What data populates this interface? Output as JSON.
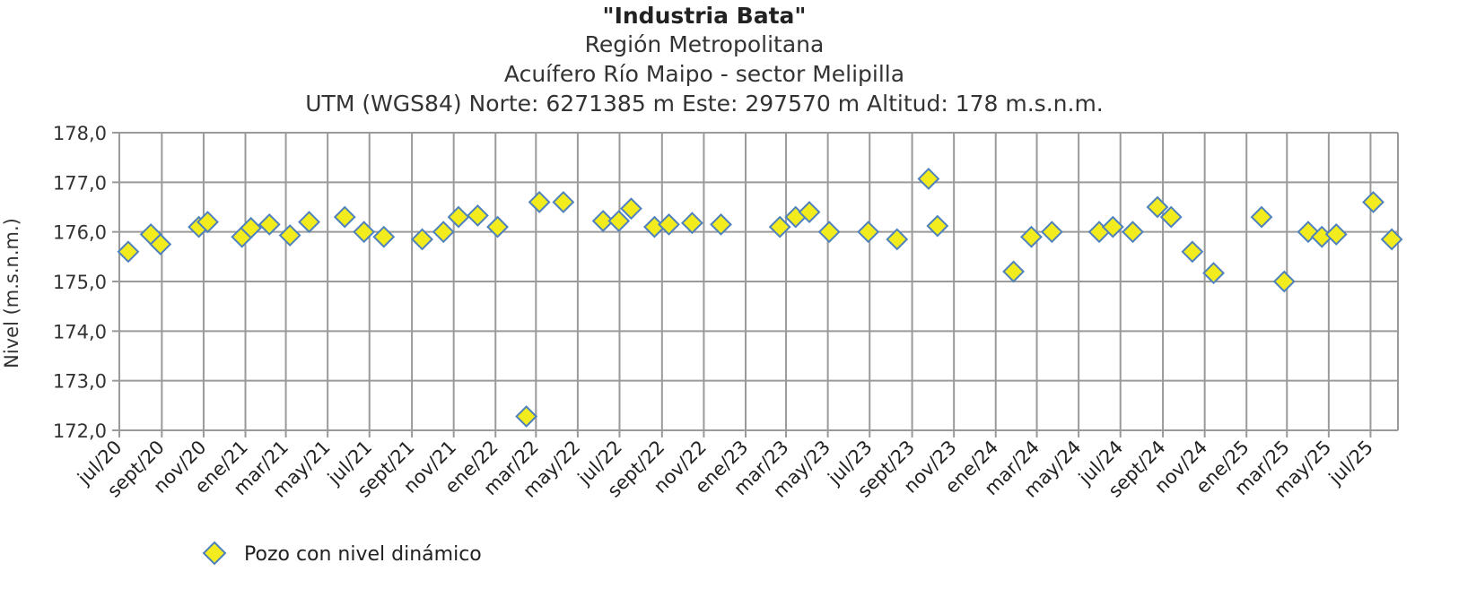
{
  "chart_data": {
    "type": "scatter",
    "title": "\"Industria Bata\"",
    "subtitles": [
      "Región Metropolitana",
      "Acuífero Río Maipo - sector Melipilla",
      "UTM (WGS84) Norte: 6271385 m Este: 297570 m   Altitud: 178 m.s.n.m."
    ],
    "xlabel": "",
    "ylabel": "Nivel (m.s.n.m.)",
    "ylim": [
      172.0,
      178.0
    ],
    "yticks": [
      "172,0",
      "173,0",
      "174,0",
      "175,0",
      "176,0",
      "177,0",
      "178,0"
    ],
    "xlim": [
      "2020-07-01",
      "2025-08-10"
    ],
    "xticks": [
      {
        "date": "2020-07-01",
        "label": "jul/20"
      },
      {
        "date": "2020-09-01",
        "label": "sept/20"
      },
      {
        "date": "2020-11-01",
        "label": "nov/20"
      },
      {
        "date": "2021-01-01",
        "label": "ene/21"
      },
      {
        "date": "2021-03-01",
        "label": "mar/21"
      },
      {
        "date": "2021-05-01",
        "label": "may/21"
      },
      {
        "date": "2021-07-01",
        "label": "jul/21"
      },
      {
        "date": "2021-09-01",
        "label": "sept/21"
      },
      {
        "date": "2021-11-01",
        "label": "nov/21"
      },
      {
        "date": "2022-01-01",
        "label": "ene/22"
      },
      {
        "date": "2022-03-01",
        "label": "mar/22"
      },
      {
        "date": "2022-05-01",
        "label": "may/22"
      },
      {
        "date": "2022-07-01",
        "label": "jul/22"
      },
      {
        "date": "2022-09-01",
        "label": "sept/22"
      },
      {
        "date": "2022-11-01",
        "label": "nov/22"
      },
      {
        "date": "2023-01-01",
        "label": "ene/23"
      },
      {
        "date": "2023-03-01",
        "label": "mar/23"
      },
      {
        "date": "2023-05-01",
        "label": "may/23"
      },
      {
        "date": "2023-07-01",
        "label": "jul/23"
      },
      {
        "date": "2023-09-01",
        "label": "sept/23"
      },
      {
        "date": "2023-11-01",
        "label": "nov/23"
      },
      {
        "date": "2024-01-01",
        "label": "ene/24"
      },
      {
        "date": "2024-03-01",
        "label": "mar/24"
      },
      {
        "date": "2024-05-01",
        "label": "may/24"
      },
      {
        "date": "2024-07-01",
        "label": "jul/24"
      },
      {
        "date": "2024-09-01",
        "label": "sept/24"
      },
      {
        "date": "2024-11-01",
        "label": "nov/24"
      },
      {
        "date": "2025-01-01",
        "label": "ene/25"
      },
      {
        "date": "2025-03-01",
        "label": "mar/25"
      },
      {
        "date": "2025-05-01",
        "label": "may/25"
      },
      {
        "date": "2025-07-01",
        "label": "jul/25"
      }
    ],
    "grid": true,
    "legend_position": "bottom-left",
    "series": [
      {
        "name": "Pozo con nivel dinámico",
        "color": "#f2ec1f",
        "edge_color": "#4f81bd",
        "marker": "diamond",
        "points": [
          {
            "x": "2020-07-14",
            "y": 175.6
          },
          {
            "x": "2020-08-16",
            "y": 175.95
          },
          {
            "x": "2020-08-30",
            "y": 175.75
          },
          {
            "x": "2020-10-25",
            "y": 176.1
          },
          {
            "x": "2020-11-07",
            "y": 176.2
          },
          {
            "x": "2020-12-27",
            "y": 175.9
          },
          {
            "x": "2021-01-09",
            "y": 176.08
          },
          {
            "x": "2021-02-05",
            "y": 176.15
          },
          {
            "x": "2021-03-07",
            "y": 175.93
          },
          {
            "x": "2021-04-04",
            "y": 176.2
          },
          {
            "x": "2021-05-26",
            "y": 176.3
          },
          {
            "x": "2021-06-23",
            "y": 176.0
          },
          {
            "x": "2021-07-22",
            "y": 175.9
          },
          {
            "x": "2021-09-16",
            "y": 175.85
          },
          {
            "x": "2021-10-17",
            "y": 176.0
          },
          {
            "x": "2021-11-08",
            "y": 176.3
          },
          {
            "x": "2021-12-06",
            "y": 176.33
          },
          {
            "x": "2022-01-04",
            "y": 176.1
          },
          {
            "x": "2022-02-15",
            "y": 172.28
          },
          {
            "x": "2022-03-06",
            "y": 176.6
          },
          {
            "x": "2022-04-10",
            "y": 176.6
          },
          {
            "x": "2022-06-07",
            "y": 176.22
          },
          {
            "x": "2022-06-30",
            "y": 176.22
          },
          {
            "x": "2022-07-18",
            "y": 176.47
          },
          {
            "x": "2022-08-21",
            "y": 176.1
          },
          {
            "x": "2022-09-11",
            "y": 176.15
          },
          {
            "x": "2022-10-15",
            "y": 176.18
          },
          {
            "x": "2022-11-26",
            "y": 176.15
          },
          {
            "x": "2023-02-20",
            "y": 176.1
          },
          {
            "x": "2023-03-15",
            "y": 176.3
          },
          {
            "x": "2023-04-04",
            "y": 176.4
          },
          {
            "x": "2023-05-03",
            "y": 176.0
          },
          {
            "x": "2023-06-29",
            "y": 176.0
          },
          {
            "x": "2023-08-10",
            "y": 175.85
          },
          {
            "x": "2023-09-25",
            "y": 177.07
          },
          {
            "x": "2023-10-08",
            "y": 176.12
          },
          {
            "x": "2024-01-27",
            "y": 175.2
          },
          {
            "x": "2024-02-22",
            "y": 175.9
          },
          {
            "x": "2024-03-23",
            "y": 176.0
          },
          {
            "x": "2024-05-31",
            "y": 176.0
          },
          {
            "x": "2024-06-20",
            "y": 176.1
          },
          {
            "x": "2024-07-19",
            "y": 176.0
          },
          {
            "x": "2024-08-24",
            "y": 176.5
          },
          {
            "x": "2024-09-13",
            "y": 176.3
          },
          {
            "x": "2024-10-14",
            "y": 175.6
          },
          {
            "x": "2024-11-14",
            "y": 175.17
          },
          {
            "x": "2025-01-23",
            "y": 176.3
          },
          {
            "x": "2025-02-25",
            "y": 175.0
          },
          {
            "x": "2025-04-01",
            "y": 176.0
          },
          {
            "x": "2025-04-21",
            "y": 175.9
          },
          {
            "x": "2025-05-12",
            "y": 175.95
          },
          {
            "x": "2025-07-05",
            "y": 176.6
          },
          {
            "x": "2025-08-01",
            "y": 175.85
          }
        ]
      }
    ]
  }
}
